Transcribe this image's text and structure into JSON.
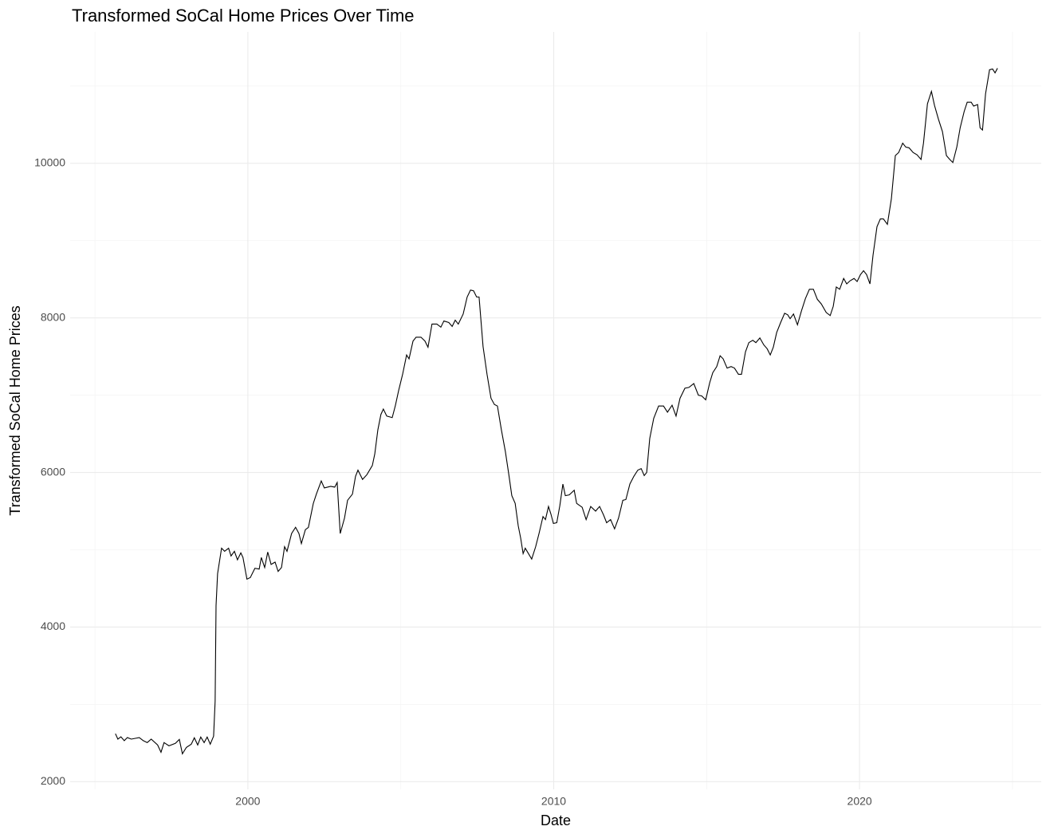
{
  "chart_data": {
    "type": "line",
    "title": "Transformed SoCal Home Prices Over Time",
    "x_label": "Date",
    "y_label": "Transformed SoCal Home Prices",
    "color": "#000000",
    "grid": true,
    "xlim": [
      1994.19,
      2025.94
    ],
    "ylim": [
      1900,
      11700
    ],
    "xticks": [
      2000,
      2010,
      2020
    ],
    "yticks": [
      2000,
      4000,
      6000,
      8000,
      10000
    ],
    "xminor": [
      1995,
      2005,
      2015,
      2025
    ],
    "yminor": [
      3000,
      5000,
      7000,
      9000,
      11000
    ],
    "x": [
      1995.67,
      1995.75,
      1995.85,
      1995.96,
      1996.06,
      1996.19,
      1996.32,
      1996.45,
      1996.58,
      1996.71,
      1996.84,
      1997.05,
      1997.16,
      1997.26,
      1997.42,
      1997.63,
      1997.76,
      1997.86,
      1997.99,
      1998.15,
      1998.25,
      1998.36,
      1998.46,
      1998.57,
      1998.67,
      1998.77,
      1998.88,
      1998.93,
      1998.96,
      1999.01,
      1999.14,
      1999.24,
      1999.37,
      1999.45,
      1999.56,
      1999.66,
      1999.77,
      1999.84,
      1999.97,
      2000.08,
      2000.23,
      2000.37,
      2000.44,
      2000.55,
      2000.65,
      2000.76,
      2000.89,
      2000.99,
      2001.1,
      2001.2,
      2001.28,
      2001.43,
      2001.56,
      2001.67,
      2001.75,
      2001.88,
      2001.98,
      2002.14,
      2002.24,
      2002.4,
      2002.5,
      2002.71,
      2002.84,
      2002.92,
      2003.02,
      2003.16,
      2003.26,
      2003.42,
      2003.52,
      2003.6,
      2003.75,
      2003.89,
      2004.07,
      2004.15,
      2004.25,
      2004.35,
      2004.43,
      2004.54,
      2004.72,
      2004.82,
      2004.93,
      2005.06,
      2005.19,
      2005.27,
      2005.4,
      2005.5,
      2005.66,
      2005.79,
      2005.89,
      2006.02,
      2006.18,
      2006.31,
      2006.41,
      2006.57,
      2006.68,
      2006.78,
      2006.88,
      2007.04,
      2007.17,
      2007.28,
      2007.38,
      2007.48,
      2007.56,
      2007.69,
      2007.82,
      2007.95,
      2008.06,
      2008.16,
      2008.29,
      2008.42,
      2008.53,
      2008.63,
      2008.74,
      2008.84,
      2008.92,
      2009.0,
      2009.07,
      2009.28,
      2009.41,
      2009.52,
      2009.65,
      2009.73,
      2009.83,
      2009.91,
      2009.99,
      2010.1,
      2010.2,
      2010.3,
      2010.38,
      2010.51,
      2010.67,
      2010.75,
      2010.93,
      2011.06,
      2011.21,
      2011.37,
      2011.5,
      2011.63,
      2011.73,
      2011.86,
      2011.99,
      2012.12,
      2012.26,
      2012.36,
      2012.49,
      2012.62,
      2012.75,
      2012.86,
      2012.96,
      2013.04,
      2013.14,
      2013.27,
      2013.43,
      2013.59,
      2013.72,
      2013.87,
      2014.0,
      2014.13,
      2014.29,
      2014.42,
      2014.58,
      2014.73,
      2014.84,
      2014.97,
      2015.1,
      2015.2,
      2015.33,
      2015.44,
      2015.54,
      2015.67,
      2015.8,
      2015.91,
      2016.04,
      2016.14,
      2016.27,
      2016.38,
      2016.51,
      2016.61,
      2016.74,
      2016.87,
      2016.98,
      2017.08,
      2017.18,
      2017.29,
      2017.42,
      2017.55,
      2017.65,
      2017.73,
      2017.84,
      2017.97,
      2018.1,
      2018.23,
      2018.36,
      2018.49,
      2018.62,
      2018.75,
      2018.91,
      2019.04,
      2019.14,
      2019.24,
      2019.35,
      2019.48,
      2019.58,
      2019.69,
      2019.82,
      2019.92,
      2020.03,
      2020.13,
      2020.23,
      2020.34,
      2020.44,
      2020.57,
      2020.68,
      2020.78,
      2020.91,
      2021.04,
      2021.17,
      2021.28,
      2021.41,
      2021.51,
      2021.62,
      2021.75,
      2021.88,
      2022.01,
      2022.09,
      2022.22,
      2022.35,
      2022.45,
      2022.58,
      2022.71,
      2022.84,
      2022.95,
      2023.05,
      2023.18,
      2023.29,
      2023.42,
      2023.52,
      2023.65,
      2023.73,
      2023.86,
      2023.94,
      2024.02,
      2024.12,
      2024.25,
      2024.35,
      2024.43,
      2024.51
    ],
    "values": [
      2620,
      2550,
      2580,
      2530,
      2570,
      2550,
      2560,
      2570,
      2530,
      2505,
      2550,
      2474,
      2380,
      2505,
      2464,
      2495,
      2546,
      2360,
      2443,
      2484,
      2567,
      2474,
      2577,
      2505,
      2577,
      2484,
      2588,
      3040,
      4280,
      4690,
      5020,
      4980,
      5020,
      4920,
      4980,
      4870,
      4960,
      4900,
      4620,
      4640,
      4760,
      4750,
      4900,
      4770,
      4970,
      4810,
      4840,
      4720,
      4770,
      5040,
      4980,
      5210,
      5290,
      5210,
      5080,
      5260,
      5290,
      5600,
      5720,
      5890,
      5800,
      5820,
      5810,
      5870,
      5210,
      5410,
      5640,
      5720,
      5950,
      6030,
      5910,
      5970,
      6090,
      6240,
      6550,
      6750,
      6820,
      6730,
      6710,
      6860,
      7060,
      7270,
      7520,
      7470,
      7700,
      7750,
      7750,
      7700,
      7620,
      7920,
      7920,
      7880,
      7960,
      7940,
      7890,
      7970,
      7920,
      8050,
      8270,
      8360,
      8350,
      8270,
      8270,
      7630,
      7270,
      6960,
      6880,
      6860,
      6550,
      6270,
      5980,
      5700,
      5600,
      5310,
      5150,
      4950,
      5020,
      4880,
      5040,
      5210,
      5430,
      5390,
      5560,
      5460,
      5340,
      5350,
      5570,
      5850,
      5700,
      5710,
      5770,
      5600,
      5550,
      5390,
      5560,
      5500,
      5560,
      5450,
      5350,
      5390,
      5270,
      5410,
      5640,
      5650,
      5850,
      5950,
      6030,
      6050,
      5960,
      6000,
      6440,
      6700,
      6860,
      6860,
      6780,
      6870,
      6730,
      6960,
      7090,
      7100,
      7150,
      7000,
      6990,
      6940,
      7160,
      7290,
      7370,
      7510,
      7470,
      7350,
      7370,
      7350,
      7270,
      7270,
      7560,
      7680,
      7710,
      7680,
      7740,
      7650,
      7600,
      7520,
      7620,
      7810,
      7940,
      8060,
      8040,
      7990,
      8050,
      7910,
      8090,
      8250,
      8370,
      8370,
      8240,
      8180,
      8070,
      8030,
      8150,
      8400,
      8370,
      8510,
      8440,
      8480,
      8510,
      8470,
      8560,
      8610,
      8560,
      8440,
      8810,
      9180,
      9280,
      9280,
      9210,
      9540,
      10100,
      10140,
      10260,
      10210,
      10200,
      10140,
      10110,
      10050,
      10260,
      10770,
      10930,
      10750,
      10570,
      10410,
      10100,
      10050,
      10010,
      10210,
      10460,
      10670,
      10790,
      10790,
      10740,
      10760,
      10460,
      10430,
      10900,
      11210,
      11220,
      11170,
      11230
    ]
  }
}
